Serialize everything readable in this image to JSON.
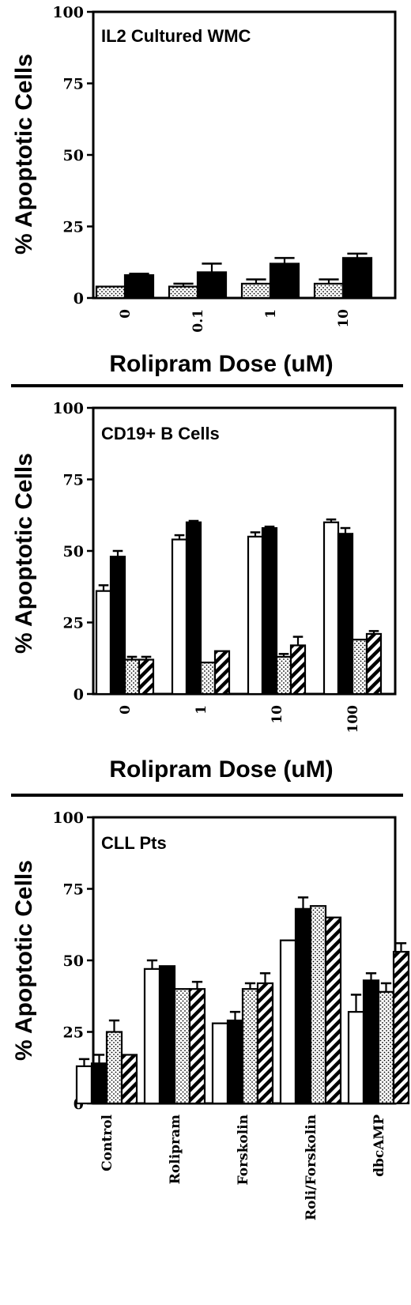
{
  "chart_data": [
    {
      "type": "bar",
      "title": "IL2 Cultured WMC",
      "ylabel": "% Apoptotic Cells",
      "xlabel": "Rolipram Dose (uM)",
      "ylim": [
        0,
        100
      ],
      "yticks": [
        "0",
        "25",
        "50",
        "75",
        "100"
      ],
      "categories": [
        "0",
        "0.1",
        "1",
        "10"
      ],
      "series": [
        {
          "fill": "dotted",
          "values": [
            4,
            4,
            5,
            5
          ],
          "errors": [
            0,
            1,
            1.5,
            1.5
          ]
        },
        {
          "fill": "black",
          "values": [
            8,
            9,
            12,
            14
          ],
          "errors": [
            0.5,
            3,
            2,
            1.5
          ]
        }
      ]
    },
    {
      "type": "bar",
      "title": "CD19+ B Cells",
      "ylabel": "% Apoptotic Cells",
      "xlabel": "Rolipram Dose (uM)",
      "ylim": [
        0,
        100
      ],
      "yticks": [
        "0",
        "25",
        "50",
        "75",
        "100"
      ],
      "categories": [
        "0",
        "1",
        "10",
        "100"
      ],
      "series": [
        {
          "fill": "white",
          "values": [
            36,
            54,
            55,
            60
          ],
          "errors": [
            2,
            1.5,
            1.5,
            1
          ]
        },
        {
          "fill": "black",
          "values": [
            48,
            60,
            58,
            56
          ],
          "errors": [
            2,
            0.5,
            0.5,
            2
          ]
        },
        {
          "fill": "dotted",
          "values": [
            12,
            11,
            13,
            19
          ],
          "errors": [
            1,
            0,
            1,
            0
          ]
        },
        {
          "fill": "hatched",
          "values": [
            12,
            15,
            17,
            21
          ],
          "errors": [
            1,
            0,
            3,
            1
          ]
        }
      ]
    },
    {
      "type": "bar",
      "title": "CLL Pts",
      "ylabel": "% Apoptotic Cells",
      "ylim": [
        0,
        100
      ],
      "yticks": [
        "0",
        "25",
        "50",
        "75",
        "100"
      ],
      "categories": [
        "Control",
        "Rolipram",
        "Forskolin",
        "Roli/Forskolin",
        "dbcAMP"
      ],
      "series": [
        {
          "fill": "white",
          "values": [
            13,
            47,
            28,
            57,
            32
          ],
          "errors": [
            2.5,
            3,
            0,
            0,
            6
          ]
        },
        {
          "fill": "black",
          "values": [
            14,
            48,
            29,
            68,
            43
          ],
          "errors": [
            3,
            0,
            3,
            4,
            2.5
          ]
        },
        {
          "fill": "dotted",
          "values": [
            25,
            40,
            40,
            69,
            39
          ],
          "errors": [
            4,
            0,
            2,
            0,
            3
          ]
        },
        {
          "fill": "hatched",
          "values": [
            17,
            40,
            42,
            65,
            53
          ],
          "errors": [
            0,
            2.5,
            3.5,
            0,
            3
          ]
        }
      ]
    }
  ]
}
